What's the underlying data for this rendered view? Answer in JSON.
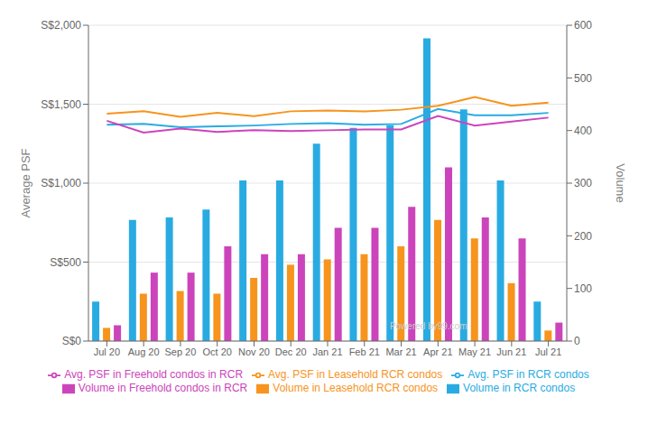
{
  "chart_data": {
    "type": "bar",
    "categories": [
      "Jul 20",
      "Aug 20",
      "Sep 20",
      "Oct 20",
      "Nov 20",
      "Dec 20",
      "Jan 21",
      "Feb 21",
      "Mar 21",
      "Apr 21",
      "May 21",
      "Jun 21",
      "Jul 21"
    ],
    "series": [
      {
        "name": "Volume in RCR condos",
        "type": "bar",
        "axis": "y2",
        "color": "#29ABE2",
        "values": [
          75,
          230,
          235,
          250,
          305,
          305,
          375,
          405,
          410,
          575,
          440,
          305,
          75
        ]
      },
      {
        "name": "Volume in Leasehold RCR condos",
        "type": "bar",
        "axis": "y2",
        "color": "#F7941D",
        "values": [
          25,
          90,
          95,
          90,
          120,
          145,
          155,
          165,
          180,
          230,
          195,
          110,
          20
        ]
      },
      {
        "name": "Volume in Freehold condos in RCR",
        "type": "bar",
        "axis": "y2",
        "color": "#CC44BB",
        "values": [
          30,
          130,
          130,
          180,
          165,
          165,
          215,
          215,
          255,
          330,
          235,
          195,
          35
        ]
      },
      {
        "name": "Avg. PSF in RCR condos",
        "type": "line",
        "color": "#29ABE2",
        "values": [
          1370,
          1375,
          1355,
          1360,
          1365,
          1375,
          1380,
          1370,
          1375,
          1470,
          1430,
          1430,
          1445
        ]
      },
      {
        "name": "Avg. PSF in Leasehold RCR condos",
        "type": "line",
        "color": "#F7941D",
        "values": [
          1440,
          1455,
          1420,
          1445,
          1425,
          1455,
          1460,
          1455,
          1465,
          1490,
          1545,
          1490,
          1510
        ]
      },
      {
        "name": "Avg. PSF in Freehold condos in RCR",
        "type": "line",
        "color": "#CC44BB",
        "values": [
          1395,
          1320,
          1345,
          1325,
          1335,
          1330,
          1335,
          1340,
          1340,
          1425,
          1365,
          1390,
          1415
        ]
      }
    ],
    "ylabel": "Average PSF",
    "y2label": "Volume",
    "ylim": [
      0,
      2000
    ],
    "yticks": [
      {
        "value": 0,
        "label": "S$0"
      },
      {
        "value": 500,
        "label": "S$500"
      },
      {
        "value": 1000,
        "label": "S$1,000"
      },
      {
        "value": 1500,
        "label": "S$1,500"
      },
      {
        "value": 2000,
        "label": "S$2,000"
      }
    ],
    "y2lim": [
      0,
      600
    ],
    "y2ticks": [
      0,
      100,
      200,
      300,
      400,
      500,
      600
    ],
    "grid": true,
    "annotations": [
      "Powered by99.com"
    ]
  }
}
